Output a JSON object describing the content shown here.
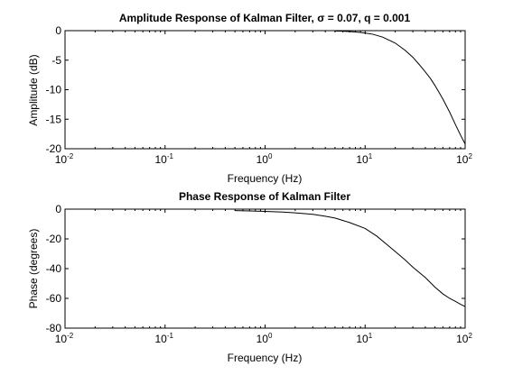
{
  "chart_data": [
    {
      "type": "line",
      "title": "Amplitude Response of Kalman Filter, σ = 0.07, q = 0.001",
      "xlabel": "Frequency (Hz)",
      "ylabel": "Amplitude (dB)",
      "xscale": "log",
      "xlim": [
        0.01,
        100
      ],
      "ylim": [
        -20,
        0
      ],
      "xticks": [
        0.01,
        0.1,
        1,
        10,
        100
      ],
      "xtick_labels": [
        {
          "base": "10",
          "exp": "-2"
        },
        {
          "base": "10",
          "exp": "-1"
        },
        {
          "base": "10",
          "exp": "0"
        },
        {
          "base": "10",
          "exp": "1"
        },
        {
          "base": "10",
          "exp": "2"
        }
      ],
      "yticks": [
        0,
        -5,
        -10,
        -15,
        -20
      ],
      "ytick_labels": [
        "0",
        "-5",
        "-10",
        "-15",
        "-20"
      ],
      "grid": false,
      "line_color": "#000000",
      "series": [
        {
          "x": [
            5,
            6,
            7,
            8,
            9,
            10,
            12,
            15,
            20,
            25,
            30,
            35,
            40,
            45,
            50,
            55,
            60,
            70,
            80,
            90,
            100
          ],
          "y": [
            -0.05,
            -0.1,
            -0.15,
            -0.22,
            -0.3,
            -0.4,
            -0.62,
            -1.1,
            -2.1,
            -3.3,
            -4.5,
            -5.8,
            -7.0,
            -8.1,
            -9.3,
            -10.5,
            -11.6,
            -13.8,
            -15.9,
            -17.7,
            -19.2
          ]
        }
      ]
    },
    {
      "type": "line",
      "title": "Phase Response of Kalman Filter",
      "xlabel": "Frequency (Hz)",
      "ylabel": "Phase (degrees)",
      "xscale": "log",
      "xlim": [
        0.01,
        100
      ],
      "ylim": [
        -80,
        0
      ],
      "xticks": [
        0.01,
        0.1,
        1,
        10,
        100
      ],
      "xtick_labels": [
        {
          "base": "10",
          "exp": "-2"
        },
        {
          "base": "10",
          "exp": "-1"
        },
        {
          "base": "10",
          "exp": "0"
        },
        {
          "base": "10",
          "exp": "1"
        },
        {
          "base": "10",
          "exp": "2"
        }
      ],
      "yticks": [
        0,
        -20,
        -40,
        -60,
        -80
      ],
      "ytick_labels": [
        "0",
        "-20",
        "-40",
        "-60",
        "-80"
      ],
      "grid": false,
      "line_color": "#000000",
      "series": [
        {
          "x": [
            0.5,
            0.7,
            1,
            1.5,
            2,
            3,
            4,
            5,
            7,
            10,
            13,
            16,
            20,
            25,
            30,
            40,
            50,
            60,
            70,
            80,
            90,
            100
          ],
          "y": [
            -1,
            -1.2,
            -1.5,
            -2,
            -2.5,
            -3.5,
            -4.8,
            -6,
            -9,
            -13,
            -18,
            -23,
            -28.5,
            -34,
            -39,
            -46,
            -52.5,
            -57,
            -60,
            -62,
            -64,
            -65.5
          ]
        }
      ]
    }
  ]
}
